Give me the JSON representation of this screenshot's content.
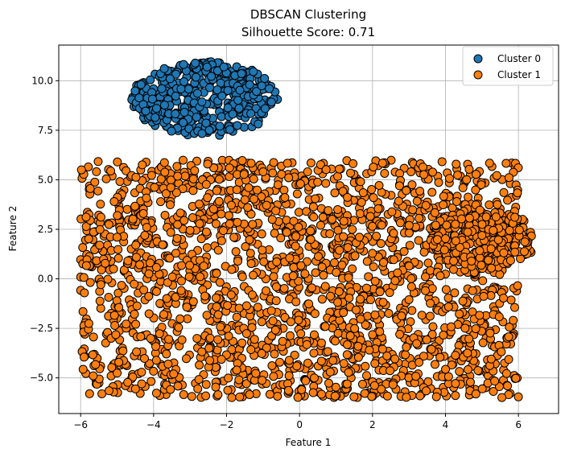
{
  "chart_data": {
    "type": "scatter",
    "title": "DBSCAN Clustering",
    "subtitle": "Silhouette Score: 0.71",
    "xlabel": "Feature 1",
    "ylabel": "Feature 2",
    "xlim": [
      -6.6,
      7.1
    ],
    "ylim": [
      -6.8,
      11.8
    ],
    "xticks": [
      -6,
      -4,
      -2,
      0,
      2,
      4,
      6
    ],
    "yticks": [
      -5.0,
      -2.5,
      0.0,
      2.5,
      5.0,
      7.5,
      10.0
    ],
    "xtick_labels": [
      "−6",
      "−4",
      "−2",
      "0",
      "2",
      "4",
      "6"
    ],
    "ytick_labels": [
      "−5.0",
      "−2.5",
      "0.0",
      "2.5",
      "5.0",
      "7.5",
      "10.0"
    ],
    "grid": true,
    "legend_position": "top-right",
    "series": [
      {
        "name": "Cluster 0",
        "color": "#1f77b4",
        "distribution": "dense ellipse",
        "center": [
          -2.6,
          9.1
        ],
        "spread": [
          2.0,
          1.9
        ],
        "points": 420
      },
      {
        "name": "Cluster 1",
        "color": "#ff7f0e",
        "distribution": "uniform block plus dense blob",
        "x_range": [
          -6.0,
          6.0
        ],
        "y_range": [
          -6.0,
          6.0
        ],
        "points": 2000,
        "blob_center": [
          5.0,
          2.0
        ],
        "blob_spread": [
          1.5,
          1.5
        ],
        "blob_points": 220
      }
    ]
  }
}
